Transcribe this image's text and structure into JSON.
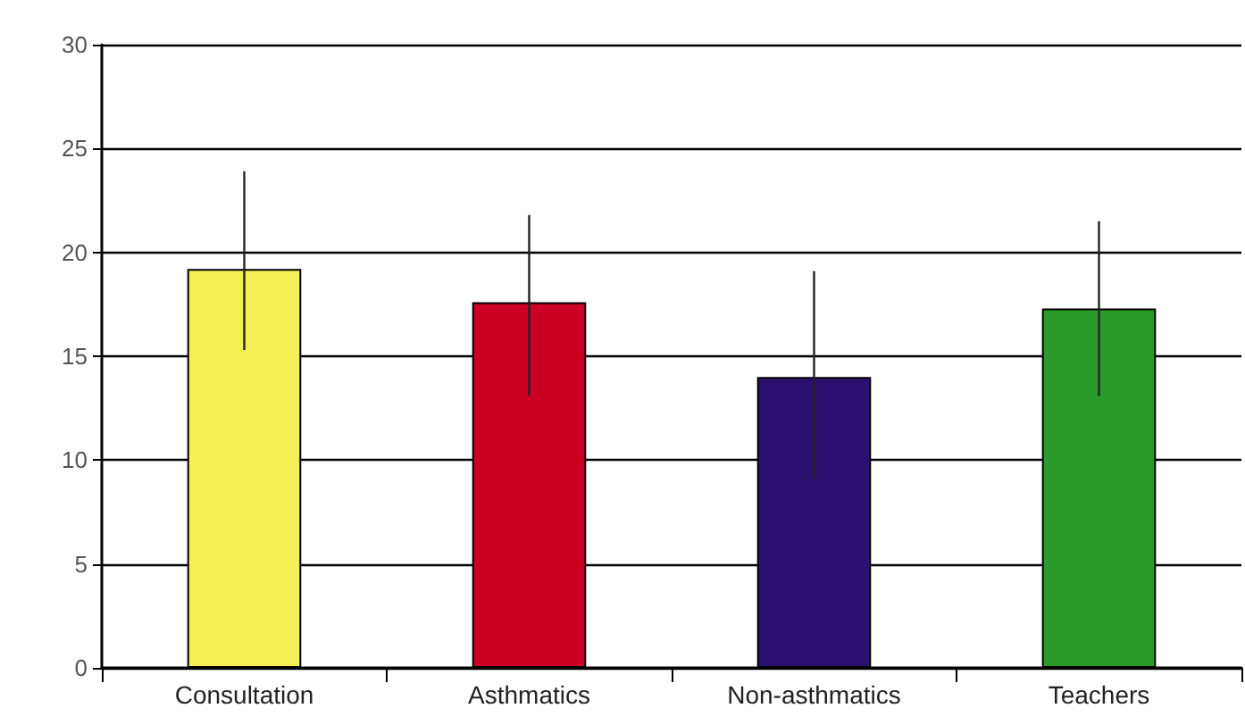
{
  "chart_data": {
    "type": "bar",
    "categories": [
      "Consultation",
      "Asthmatics",
      "Non-asthmatics",
      "Teachers"
    ],
    "values": [
      19.2,
      17.6,
      14.0,
      17.3
    ],
    "colors": [
      "#f5ee55",
      "#cc0022",
      "#2a1070",
      "#2a9a2a"
    ],
    "errors": [
      [
        15.3,
        23.9
      ],
      [
        13.1,
        21.8
      ],
      [
        9.1,
        19.1
      ],
      [
        13.1,
        21.5
      ]
    ],
    "ylim": [
      0,
      30
    ],
    "yticks": [
      0,
      5,
      10,
      15,
      20,
      25,
      30
    ],
    "grid": "y"
  }
}
